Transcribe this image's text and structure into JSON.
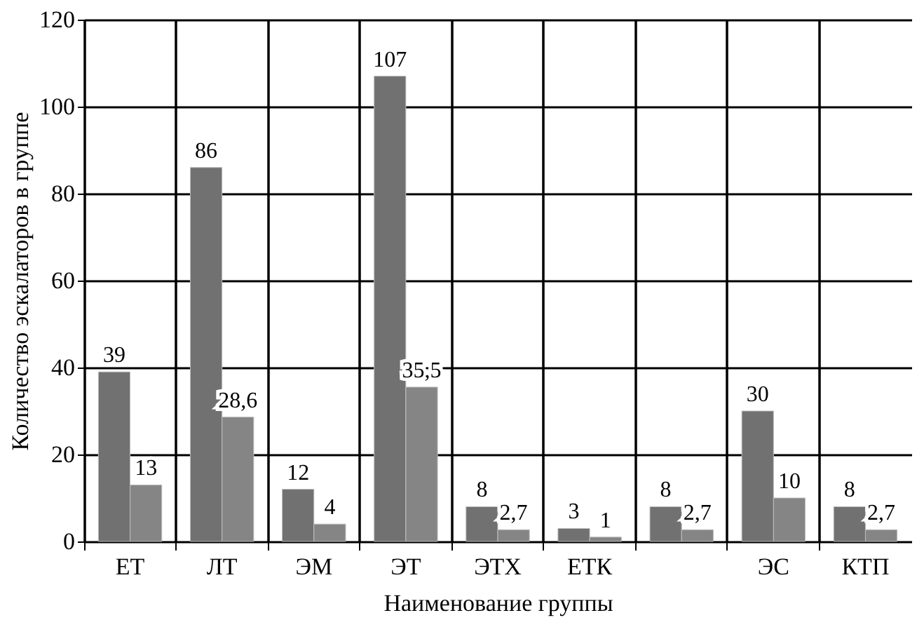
{
  "chart_data": {
    "type": "bar",
    "xlabel": "Наименование группы",
    "ylabel": "Количество эскалаторов в группе",
    "categories": [
      "ЕТ",
      "ЛТ",
      "ЭМ",
      "ЭТ",
      "ЭТХ",
      "ЕТК",
      null,
      "ЭС",
      "КТП"
    ],
    "series": [
      {
        "color": "#717171",
        "values": [
          39,
          86,
          12,
          107,
          8,
          3,
          8,
          30,
          8
        ],
        "value_labels": [
          "39",
          "86",
          "12",
          "107",
          "8",
          "3",
          "8",
          "30",
          "8"
        ]
      },
      {
        "color": "#858585",
        "values": [
          13,
          28.6,
          4,
          35.5,
          2.7,
          1,
          2.7,
          10,
          2.7
        ],
        "value_labels": [
          "13",
          "28,6",
          "4",
          "35,5",
          "2,7",
          "1",
          "2,7",
          "10",
          "2,7"
        ]
      }
    ],
    "ylim": [
      0,
      120
    ],
    "yticks": [
      0,
      20,
      40,
      60,
      80,
      100,
      120
    ],
    "grid": true
  }
}
